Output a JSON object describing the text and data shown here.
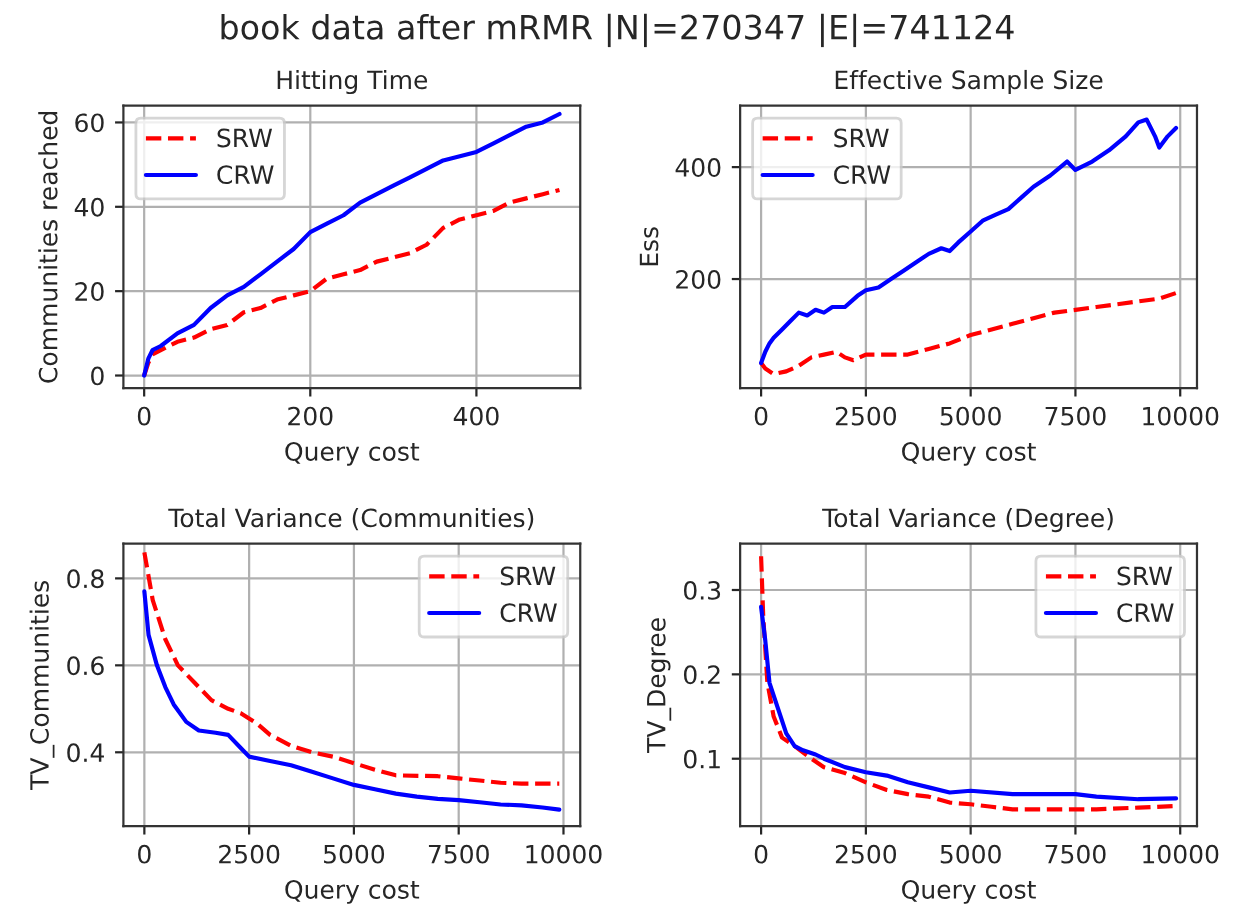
{
  "chart_data": [
    {
      "type": "line",
      "title": "book data after mRMR |N|=270347 |E|=741124",
      "subtitle": "Hitting Time",
      "xlabel": "Query cost",
      "ylabel": "Communities reached",
      "xlim": [
        -25,
        525
      ],
      "ylim": [
        -3,
        64
      ],
      "xticks": [
        0,
        200,
        400
      ],
      "yticks": [
        0,
        20,
        40,
        60
      ],
      "grid": true,
      "legend": "top left",
      "series": [
        {
          "name": "SRW",
          "color": "#ff0000",
          "line_style": "dashed",
          "x": [
            0,
            5,
            10,
            20,
            40,
            60,
            80,
            100,
            120,
            140,
            160,
            180,
            200,
            220,
            240,
            260,
            280,
            300,
            320,
            340,
            360,
            380,
            400,
            420,
            440,
            460,
            480,
            500
          ],
          "values": [
            0,
            3,
            5,
            6,
            8,
            9,
            11,
            12,
            15,
            16,
            18,
            19,
            20,
            23,
            24,
            25,
            27,
            28,
            29,
            31,
            35,
            37,
            38,
            39,
            41,
            42,
            43,
            44
          ]
        },
        {
          "name": "CRW",
          "color": "#0000ff",
          "line_style": "solid",
          "x": [
            0,
            5,
            10,
            20,
            40,
            60,
            80,
            100,
            120,
            140,
            160,
            180,
            200,
            220,
            240,
            260,
            280,
            300,
            320,
            340,
            360,
            380,
            400,
            420,
            440,
            460,
            480,
            500
          ],
          "values": [
            0,
            4,
            6,
            7,
            10,
            12,
            16,
            19,
            21,
            24,
            27,
            30,
            34,
            36,
            38,
            41,
            43,
            45,
            47,
            49,
            51,
            52,
            53,
            55,
            57,
            59,
            60,
            62
          ]
        }
      ]
    },
    {
      "type": "line",
      "subtitle": "Effective Sample Size",
      "xlabel": "Query cost",
      "ylabel": "Ess",
      "xlim": [
        -500,
        10400
      ],
      "ylim": [
        5,
        510
      ],
      "xticks": [
        0,
        2500,
        5000,
        7500,
        10000
      ],
      "yticks": [
        200,
        400
      ],
      "grid": true,
      "legend": "top left",
      "series": [
        {
          "name": "SRW",
          "color": "#ff0000",
          "line_style": "dashed",
          "x": [
            0,
            100,
            300,
            600,
            900,
            1200,
            1500,
            1800,
            2000,
            2200,
            2500,
            3000,
            3500,
            4000,
            4500,
            5000,
            5500,
            6000,
            6500,
            7000,
            7500,
            8000,
            8500,
            9000,
            9500,
            9900
          ],
          "values": [
            50,
            40,
            30,
            35,
            45,
            60,
            65,
            70,
            60,
            55,
            65,
            65,
            65,
            75,
            85,
            100,
            110,
            120,
            130,
            140,
            145,
            150,
            155,
            160,
            165,
            175
          ]
        },
        {
          "name": "CRW",
          "color": "#0000ff",
          "line_style": "solid",
          "x": [
            0,
            100,
            200,
            300,
            500,
            700,
            900,
            1100,
            1300,
            1500,
            1700,
            2000,
            2300,
            2500,
            2800,
            3100,
            3400,
            3700,
            4000,
            4300,
            4500,
            4700,
            5000,
            5300,
            5600,
            5900,
            6200,
            6500,
            6900,
            7300,
            7500,
            7900,
            8300,
            8700,
            9000,
            9200,
            9400,
            9500,
            9700,
            9900
          ],
          "values": [
            50,
            70,
            85,
            95,
            110,
            125,
            140,
            135,
            145,
            140,
            150,
            150,
            170,
            180,
            185,
            200,
            215,
            230,
            245,
            255,
            250,
            265,
            285,
            305,
            315,
            325,
            345,
            365,
            385,
            410,
            395,
            410,
            430,
            455,
            480,
            485,
            455,
            435,
            455,
            470
          ]
        }
      ]
    },
    {
      "type": "line",
      "subtitle": "Total Variance (Communities)",
      "xlabel": "Query cost",
      "ylabel": "TV_Communities",
      "xlim": [
        -500,
        10400
      ],
      "ylim": [
        0.23,
        0.88
      ],
      "xticks": [
        0,
        2500,
        5000,
        7500,
        10000
      ],
      "yticks": [
        0.4,
        0.6,
        0.8
      ],
      "grid": true,
      "legend": "top right",
      "series": [
        {
          "name": "SRW",
          "color": "#ff0000",
          "line_style": "dashed",
          "x": [
            0,
            200,
            500,
            800,
            1200,
            1600,
            2000,
            2300,
            2700,
            3000,
            3500,
            4000,
            4500,
            5000,
            5500,
            6000,
            7000,
            7500,
            8000,
            8500,
            9000,
            9900
          ],
          "values": [
            0.86,
            0.75,
            0.66,
            0.6,
            0.56,
            0.52,
            0.5,
            0.49,
            0.465,
            0.44,
            0.415,
            0.4,
            0.39,
            0.375,
            0.36,
            0.347,
            0.345,
            0.34,
            0.335,
            0.33,
            0.328,
            0.328
          ]
        },
        {
          "name": "CRW",
          "color": "#0000ff",
          "line_style": "solid",
          "x": [
            0,
            100,
            300,
            500,
            700,
            1000,
            1300,
            1700,
            2000,
            2300,
            2500,
            3000,
            3500,
            4000,
            4500,
            5000,
            5500,
            6000,
            6500,
            7000,
            7500,
            8000,
            8500,
            9000,
            9500,
            9900
          ],
          "values": [
            0.77,
            0.67,
            0.6,
            0.55,
            0.51,
            0.47,
            0.45,
            0.445,
            0.44,
            0.41,
            0.39,
            0.38,
            0.37,
            0.355,
            0.34,
            0.325,
            0.315,
            0.305,
            0.298,
            0.293,
            0.29,
            0.285,
            0.28,
            0.278,
            0.273,
            0.268
          ]
        }
      ]
    },
    {
      "type": "line",
      "subtitle": "Total Variance (Degree)",
      "xlabel": "Query cost",
      "ylabel": "TV_Degree",
      "xlim": [
        -500,
        10400
      ],
      "ylim": [
        0.02,
        0.355
      ],
      "xticks": [
        0,
        2500,
        5000,
        7500,
        10000
      ],
      "yticks": [
        0.1,
        0.2,
        0.3
      ],
      "grid": true,
      "legend": "top right",
      "series": [
        {
          "name": "SRW",
          "color": "#ff0000",
          "line_style": "dashed",
          "x": [
            0,
            50,
            150,
            300,
            500,
            800,
            1200,
            1500,
            2000,
            2500,
            3000,
            3500,
            4000,
            4500,
            5000,
            5500,
            6000,
            7000,
            8000,
            9000,
            9900
          ],
          "values": [
            0.34,
            0.27,
            0.19,
            0.15,
            0.125,
            0.115,
            0.1,
            0.09,
            0.083,
            0.072,
            0.063,
            0.058,
            0.055,
            0.048,
            0.046,
            0.043,
            0.04,
            0.04,
            0.04,
            0.042,
            0.044
          ]
        },
        {
          "name": "CRW",
          "color": "#0000ff",
          "line_style": "solid",
          "x": [
            0,
            100,
            200,
            400,
            600,
            800,
            1000,
            1300,
            1500,
            2000,
            2500,
            3000,
            3500,
            4000,
            4500,
            5000,
            6000,
            7000,
            7500,
            8000,
            9000,
            9900
          ],
          "values": [
            0.28,
            0.24,
            0.19,
            0.16,
            0.13,
            0.115,
            0.11,
            0.105,
            0.1,
            0.09,
            0.084,
            0.08,
            0.072,
            0.066,
            0.06,
            0.062,
            0.058,
            0.058,
            0.058,
            0.055,
            0.052,
            0.053
          ]
        }
      ]
    }
  ]
}
